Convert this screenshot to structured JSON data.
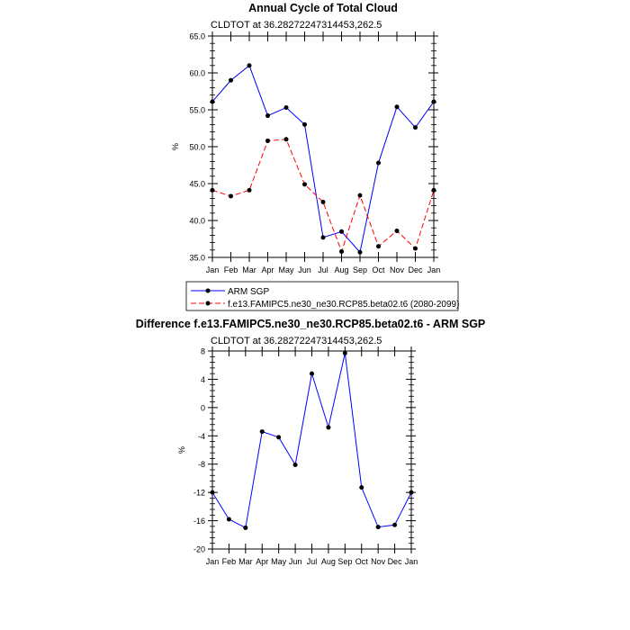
{
  "chart_data": [
    {
      "type": "line",
      "title": "Annual Cycle of Total Cloud",
      "subtitle": "CLDTOT at 36.28272247314453,262.5",
      "ylabel": "%",
      "xlabel": "",
      "ylim": [
        35,
        65
      ],
      "ytick_labels": [
        "35.0",
        "40.0",
        "45.0",
        "50.0",
        "55.0",
        "60.0",
        "65.0"
      ],
      "ytick_values": [
        35,
        40,
        45,
        50,
        55,
        60,
        65
      ],
      "categories": [
        "Jan",
        "Feb",
        "Mar",
        "Apr",
        "May",
        "Jun",
        "Jul",
        "Aug",
        "Sep",
        "Oct",
        "Nov",
        "Dec",
        "Jan"
      ],
      "series": [
        {
          "name": "ARM SGP",
          "color": "#0000ff",
          "dashed": false,
          "values": [
            56.1,
            59.0,
            61.0,
            54.2,
            55.3,
            53.0,
            37.7,
            38.5,
            35.7,
            47.8,
            55.4,
            52.6,
            56.1
          ]
        },
        {
          "name": "f.e13.FAMIPC5.ne30_ne30.RCP85.beta02.t6 (2080-2099)",
          "color": "#ff0000",
          "dashed": true,
          "values": [
            44.1,
            43.3,
            44.1,
            50.8,
            51.0,
            44.9,
            42.5,
            35.8,
            43.4,
            36.5,
            38.6,
            36.2,
            44.1
          ]
        }
      ],
      "legend": "bottom"
    },
    {
      "type": "line",
      "title": "Difference f.e13.FAMIPC5.ne30_ne30.RCP85.beta02.t6 - ARM SGP",
      "subtitle": "CLDTOT at 36.28272247314453,262.5",
      "ylabel": "%",
      "xlabel": "",
      "ylim": [
        -20,
        8
      ],
      "ytick_labels": [
        "-20",
        "-16",
        "-12",
        "-8",
        "-4",
        "0",
        "4",
        "8"
      ],
      "ytick_values": [
        -20,
        -16,
        -12,
        -8,
        -4,
        0,
        4,
        8
      ],
      "categories": [
        "Jan",
        "Feb",
        "Mar",
        "Apr",
        "May",
        "Jun",
        "Jul",
        "Aug",
        "Sep",
        "Oct",
        "Nov",
        "Dec",
        "Jan"
      ],
      "series": [
        {
          "name": "Difference",
          "color": "#0000ff",
          "dashed": false,
          "values": [
            -12.0,
            -15.8,
            -17.0,
            -3.4,
            -4.2,
            -8.1,
            4.8,
            -2.8,
            7.7,
            -11.3,
            -16.9,
            -16.6,
            -12.0
          ]
        }
      ]
    }
  ]
}
